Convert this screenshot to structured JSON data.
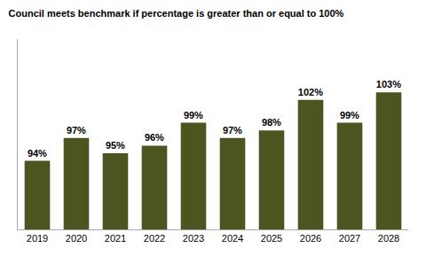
{
  "chart_data": {
    "type": "bar",
    "title": "Council meets benchmark if percentage is greater than or equal to 100%",
    "categories": [
      "2019",
      "2020",
      "2021",
      "2022",
      "2023",
      "2024",
      "2025",
      "2026",
      "2027",
      "2028"
    ],
    "values": [
      94,
      97,
      95,
      96,
      99,
      97,
      98,
      102,
      99,
      103
    ],
    "value_labels": [
      "94%",
      "97%",
      "95%",
      "96%",
      "99%",
      "97%",
      "98%",
      "102%",
      "99%",
      "103%"
    ],
    "data_labels": true,
    "color": "#4a5520",
    "ylim": [
      85,
      110
    ],
    "grid": false,
    "tick_labels": "x"
  }
}
